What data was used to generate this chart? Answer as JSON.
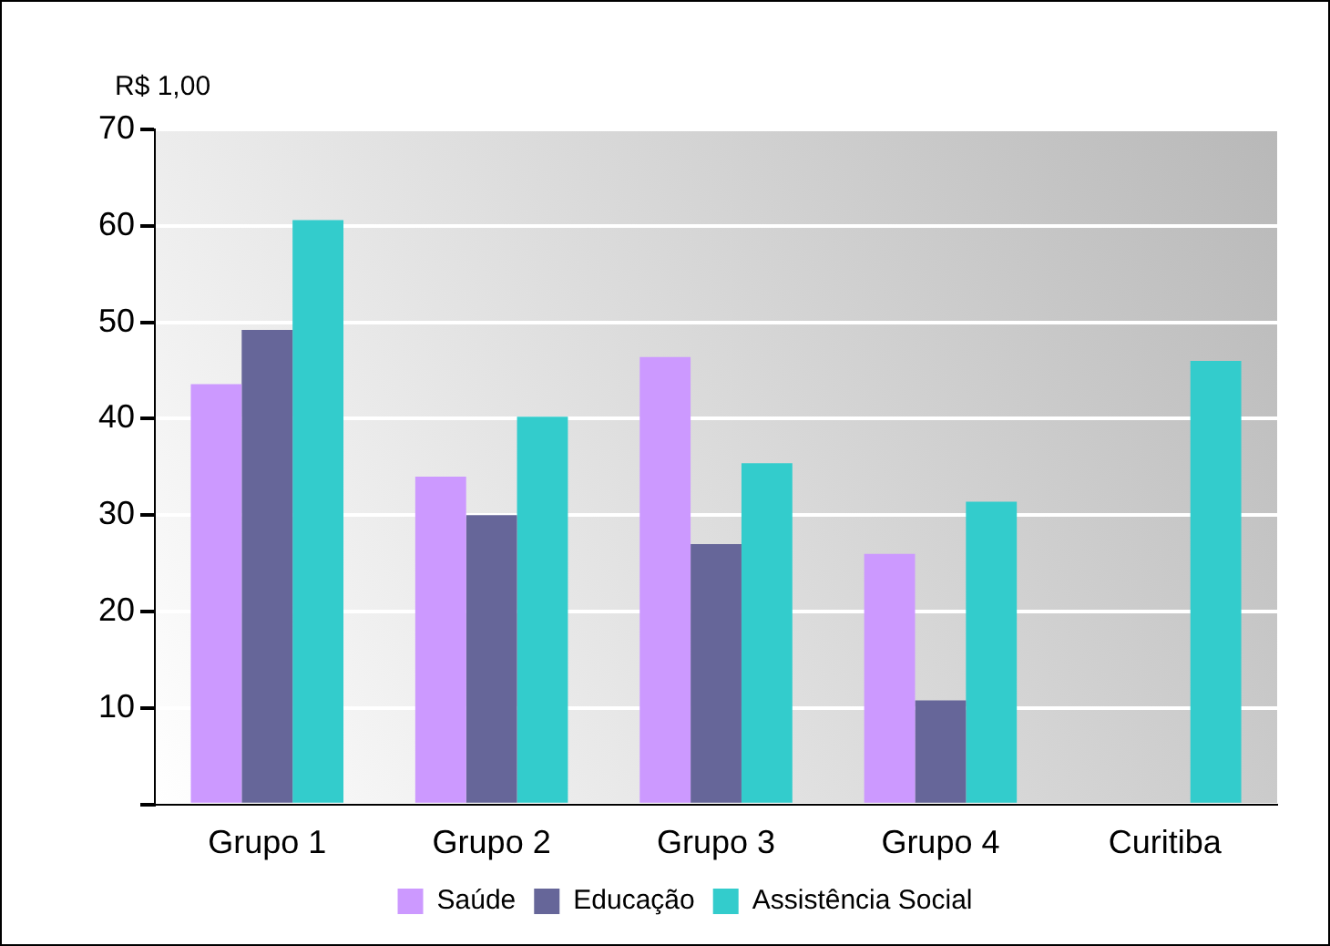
{
  "chart_data": {
    "type": "bar",
    "ylabel": "R$ 1,00",
    "categories": [
      "Grupo 1",
      "Grupo 2",
      "Grupo 3",
      "Grupo 4",
      "Curitiba"
    ],
    "series": [
      {
        "name": "Saúde",
        "color": "#cc99ff",
        "values": [
          43.6,
          34,
          46.4,
          26,
          null
        ]
      },
      {
        "name": "Educação",
        "color": "#666699",
        "values": [
          49.2,
          30,
          27,
          10.8,
          null
        ]
      },
      {
        "name": "Assistência Social",
        "color": "#33cccc",
        "values": [
          60.6,
          40.2,
          35.4,
          31.4,
          46
        ]
      }
    ],
    "ylim": [
      0,
      70
    ],
    "yticks": [
      {
        "value": 0,
        "label": null
      },
      10,
      20,
      30,
      40,
      50,
      60,
      70
    ],
    "grid": "y",
    "legend": "bottom"
  }
}
